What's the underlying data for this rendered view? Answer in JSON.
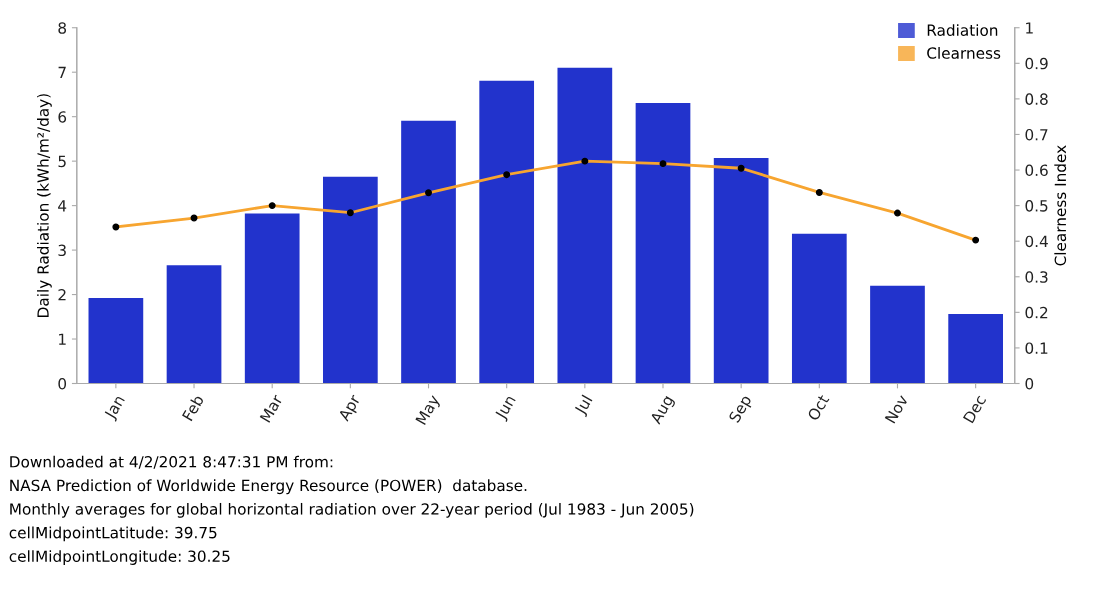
{
  "chart_data": {
    "type": "bar",
    "categories": [
      "Jan",
      "Feb",
      "Mar",
      "Apr",
      "May",
      "Jun",
      "Jul",
      "Aug",
      "Sep",
      "Oct",
      "Nov",
      "Dec"
    ],
    "series": [
      {
        "name": "Radiation",
        "color": "#2233cc",
        "values": [
          1.92,
          2.66,
          3.82,
          4.65,
          5.91,
          6.81,
          7.1,
          6.31,
          5.07,
          3.37,
          2.2,
          1.56
        ]
      },
      {
        "name": "Clearness",
        "type": "line",
        "axis": "y2",
        "color": "#f7a530",
        "marker": "circle",
        "values": [
          0.44,
          0.465,
          0.5,
          0.48,
          0.536,
          0.587,
          0.625,
          0.618,
          0.605,
          0.537,
          0.479,
          0.403
        ]
      }
    ],
    "ylabel": "Daily Radiation (kWh/m²/day)",
    "y2label": "Clearness Index",
    "ylim": [
      0,
      8
    ],
    "yticks": [
      0,
      1,
      2,
      3,
      4,
      5,
      6,
      7,
      8
    ],
    "y2lim": [
      0,
      1
    ],
    "y2ticks": [
      0,
      0.1,
      0.2,
      0.3,
      0.4,
      0.5,
      0.6,
      0.7,
      0.8,
      0.9,
      1
    ],
    "legend": "top right",
    "grid": false,
    "annotations": [
      "Downloaded at 4/2/2021 8:47:31 PM from:",
      "NASA Prediction of Worldwide Energy Resource (POWER)  database.",
      "Monthly averages for global horizontal radiation over 22-year period (Jul 1983 - Jun 2005)",
      "cellMidpointLatitude: 39.75",
      "cellMidpointLongitude: 30.25"
    ]
  }
}
